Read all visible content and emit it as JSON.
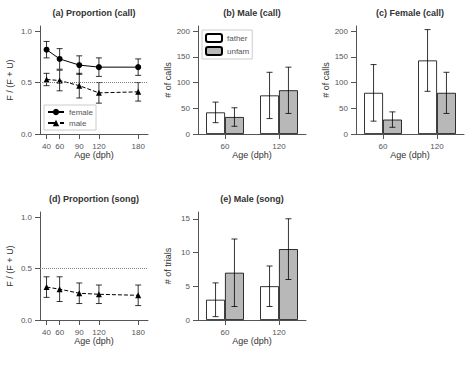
{
  "chart_data": [
    {
      "type": "line",
      "title": "(a) Proportion (call)",
      "xlabel": "Age (dph)",
      "ylabel": "F / (F + U)",
      "x": [
        40,
        60,
        90,
        120,
        180
      ],
      "series": [
        {
          "name": "female",
          "color": "black",
          "marker": "circle",
          "line_style": "solid",
          "values": [
            0.82,
            0.73,
            0.67,
            0.65,
            0.65
          ],
          "errors": [
            0.08,
            0.1,
            0.09,
            0.09,
            0.08
          ]
        },
        {
          "name": "male",
          "color": "black",
          "marker": "triangle",
          "line_style": "dashed",
          "values": [
            0.53,
            0.52,
            0.47,
            0.4,
            0.41
          ],
          "errors": [
            0.06,
            0.1,
            0.12,
            0.1,
            0.09
          ]
        }
      ],
      "hline": 0.5,
      "xlim": [
        30,
        195
      ],
      "xticks": [
        40,
        60,
        90,
        120,
        180
      ],
      "ylim": [
        0,
        1.05
      ],
      "yticks": [
        {
          "value": 0,
          "label": "0.0"
        },
        {
          "value": 0.5,
          "label": "0.5"
        },
        {
          "value": 1,
          "label": "1.0"
        }
      ],
      "legend": "lower left",
      "grid": false
    },
    {
      "type": "bar",
      "title": "(b) Male (call)",
      "xlabel": "Age (dph)",
      "ylabel": "# of calls",
      "categories": [
        "60",
        "120"
      ],
      "series": [
        {
          "name": "father",
          "color": "white",
          "values": [
            42,
            75
          ],
          "errors": [
            20,
            45
          ]
        },
        {
          "name": "unfam",
          "color": "#b8b8b8",
          "values": [
            33,
            85
          ],
          "errors": [
            18,
            45
          ]
        }
      ],
      "ylim": [
        0,
        210
      ],
      "yticks": [
        0,
        50,
        100,
        150,
        200
      ],
      "legend": "upper left",
      "grid": false
    },
    {
      "type": "bar",
      "title": "(c) Female (call)",
      "xlabel": "Age (dph)",
      "ylabel": "# of calls",
      "categories": [
        "60",
        "120"
      ],
      "series": [
        {
          "name": "father",
          "color": "white",
          "values": [
            80,
            143
          ],
          "errors": [
            55,
            60
          ]
        },
        {
          "name": "unfam",
          "color": "#b8b8b8",
          "values": [
            28,
            80
          ],
          "errors": [
            15,
            40
          ]
        }
      ],
      "ylim": [
        0,
        210
      ],
      "yticks": [
        0,
        50,
        100,
        150,
        200
      ],
      "grid": false
    },
    {
      "type": "line",
      "title": "(d) Proportion (song)",
      "xlabel": "Age (dph)",
      "ylabel": "F / (F + U)",
      "x": [
        40,
        60,
        90,
        120,
        180
      ],
      "series": [
        {
          "name": "male",
          "color": "black",
          "marker": "triangle",
          "line_style": "dashed",
          "values": [
            0.32,
            0.3,
            0.26,
            0.25,
            0.24
          ],
          "errors": [
            0.1,
            0.12,
            0.1,
            0.09,
            0.1
          ]
        }
      ],
      "hline": 0.5,
      "xlim": [
        30,
        195
      ],
      "xticks": [
        40,
        60,
        90,
        120,
        180
      ],
      "ylim": [
        0,
        1.05
      ],
      "yticks": [
        {
          "value": 0,
          "label": "0.0"
        },
        {
          "value": 0.5,
          "label": "0.5"
        },
        {
          "value": 1,
          "label": "1.0"
        }
      ],
      "grid": false
    },
    {
      "type": "bar",
      "title": "(e) Male (song)",
      "xlabel": "Age (dph)",
      "ylabel": "# of trials",
      "categories": [
        "60",
        "120"
      ],
      "series": [
        {
          "name": "father",
          "color": "white",
          "values": [
            3,
            5
          ],
          "errors": [
            2.5,
            3
          ]
        },
        {
          "name": "unfam",
          "color": "#b8b8b8",
          "values": [
            7,
            10.5
          ],
          "errors": [
            5,
            4.5
          ]
        }
      ],
      "ylim": [
        0,
        16
      ],
      "yticks": [
        0,
        5,
        10,
        15
      ],
      "grid": false
    }
  ]
}
